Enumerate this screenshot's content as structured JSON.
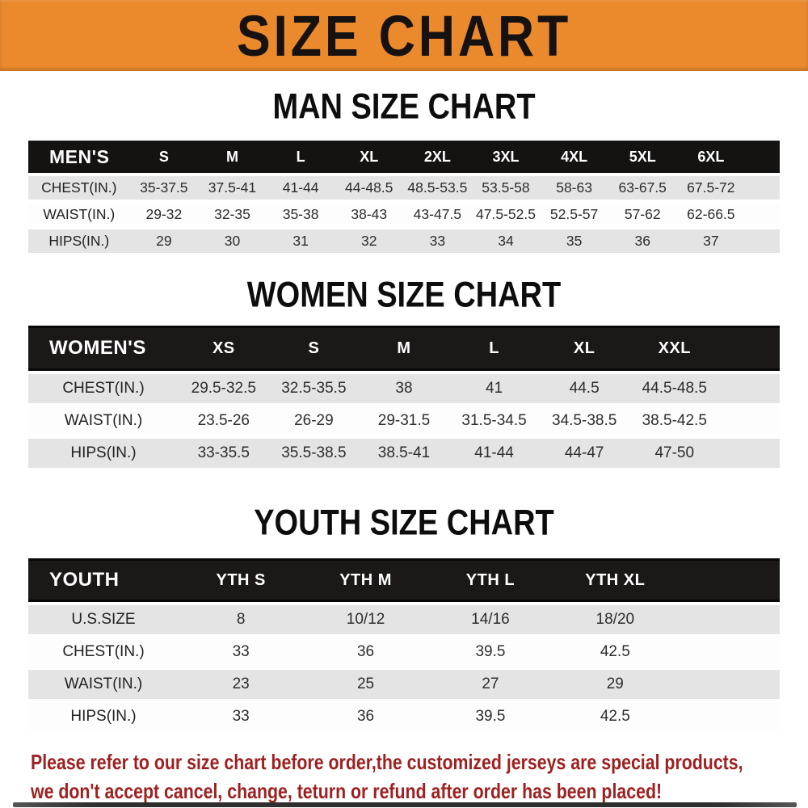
{
  "banner": {
    "title": "SIZE CHART"
  },
  "colors": {
    "banner_bg": "#EB8A2D",
    "banner_text": "#171212",
    "table_header_bg": "#1c1818",
    "row_gray": "#E5E4E4",
    "row_white": "#FDFDFD",
    "disclaimer_red": "#9E2020"
  },
  "sections": [
    {
      "id": "men",
      "heading": "MAN SIZE CHART",
      "header_label": "MEN'S",
      "columns": [
        "S",
        "M",
        "L",
        "XL",
        "2XL",
        "3XL",
        "4XL",
        "5XL",
        "6XL"
      ],
      "rows": [
        {
          "label": "CHEST(IN.)",
          "values": [
            "35-37.5",
            "37.5-41",
            "41-44",
            "44-48.5",
            "48.5-53.5",
            "53.5-58",
            "58-63",
            "63-67.5",
            "67.5-72"
          ]
        },
        {
          "label": "WAIST(IN.)",
          "values": [
            "29-32",
            "32-35",
            "35-38",
            "38-43",
            "43-47.5",
            "47.5-52.5",
            "52.5-57",
            "57-62",
            "62-66.5"
          ]
        },
        {
          "label": "HIPS(IN.)",
          "values": [
            "29",
            "30",
            "31",
            "32",
            "33",
            "34",
            "35",
            "36",
            "37"
          ]
        }
      ]
    },
    {
      "id": "women",
      "heading": "WOMEN SIZE CHART",
      "header_label": "WOMEN'S",
      "columns": [
        "XS",
        "S",
        "M",
        "L",
        "XL",
        "XXL"
      ],
      "rows": [
        {
          "label": "CHEST(IN.)",
          "values": [
            "29.5-32.5",
            "32.5-35.5",
            "38",
            "41",
            "44.5",
            "44.5-48.5"
          ]
        },
        {
          "label": "WAIST(IN.)",
          "values": [
            "23.5-26",
            "26-29",
            "29-31.5",
            "31.5-34.5",
            "34.5-38.5",
            "38.5-42.5"
          ]
        },
        {
          "label": "HIPS(IN.)",
          "values": [
            "33-35.5",
            "35.5-38.5",
            "38.5-41",
            "41-44",
            "44-47",
            "47-50"
          ]
        }
      ]
    },
    {
      "id": "youth",
      "heading": "YOUTH SIZE CHART",
      "header_label": "YOUTH",
      "columns": [
        "YTH S",
        "YTH M",
        "YTH L",
        "YTH XL"
      ],
      "rows": [
        {
          "label": "U.S.SIZE",
          "values": [
            "8",
            "10/12",
            "14/16",
            "18/20"
          ]
        },
        {
          "label": "CHEST(IN.)",
          "values": [
            "33",
            "36",
            "39.5",
            "42.5"
          ]
        },
        {
          "label": "WAIST(IN.)",
          "values": [
            "23",
            "25",
            "27",
            "29"
          ]
        },
        {
          "label": "HIPS(IN.)",
          "values": [
            "33",
            "36",
            "39.5",
            "42.5"
          ]
        }
      ]
    }
  ],
  "disclaimer": {
    "line1": "Please refer to our size chart before order,the customized jerseys are special products,",
    "line2": "we don't accept cancel, change, teturn or refund after order has been placed!"
  },
  "chart_data": [
    {
      "type": "table",
      "title": "MAN SIZE CHART",
      "columns": [
        "MEN'S",
        "S",
        "M",
        "L",
        "XL",
        "2XL",
        "3XL",
        "4XL",
        "5XL",
        "6XL"
      ],
      "rows": [
        [
          "CHEST(IN.)",
          "35-37.5",
          "37.5-41",
          "41-44",
          "44-48.5",
          "48.5-53.5",
          "53.5-58",
          "58-63",
          "63-67.5",
          "67.5-72"
        ],
        [
          "WAIST(IN.)",
          "29-32",
          "32-35",
          "35-38",
          "38-43",
          "43-47.5",
          "47.5-52.5",
          "52.5-57",
          "57-62",
          "62-66.5"
        ],
        [
          "HIPS(IN.)",
          "29",
          "30",
          "31",
          "32",
          "33",
          "34",
          "35",
          "36",
          "37"
        ]
      ]
    },
    {
      "type": "table",
      "title": "WOMEN SIZE CHART",
      "columns": [
        "WOMEN'S",
        "XS",
        "S",
        "M",
        "L",
        "XL",
        "XXL"
      ],
      "rows": [
        [
          "CHEST(IN.)",
          "29.5-32.5",
          "32.5-35.5",
          "38",
          "41",
          "44.5",
          "44.5-48.5"
        ],
        [
          "WAIST(IN.)",
          "23.5-26",
          "26-29",
          "29-31.5",
          "31.5-34.5",
          "34.5-38.5",
          "38.5-42.5"
        ],
        [
          "HIPS(IN.)",
          "33-35.5",
          "35.5-38.5",
          "38.5-41",
          "41-44",
          "44-47",
          "47-50"
        ]
      ]
    },
    {
      "type": "table",
      "title": "YOUTH SIZE CHART",
      "columns": [
        "YOUTH",
        "YTH S",
        "YTH M",
        "YTH L",
        "YTH XL"
      ],
      "rows": [
        [
          "U.S.SIZE",
          "8",
          "10/12",
          "14/16",
          "18/20"
        ],
        [
          "CHEST(IN.)",
          "33",
          "36",
          "39.5",
          "42.5"
        ],
        [
          "WAIST(IN.)",
          "23",
          "25",
          "27",
          "29"
        ],
        [
          "HIPS(IN.)",
          "33",
          "36",
          "39.5",
          "42.5"
        ]
      ]
    }
  ]
}
